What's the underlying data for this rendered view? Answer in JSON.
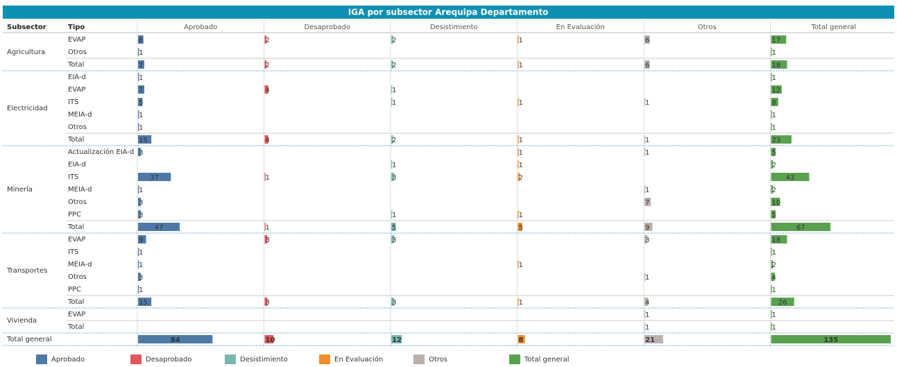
{
  "title": "IGA por subsector Arequipa Departamento",
  "header": {
    "subsector": "Subsector",
    "tipo": "Tipo"
  },
  "columns": [
    {
      "name": "Aprobado",
      "color": "#4e79a7"
    },
    {
      "name": "Desaprobado",
      "color": "#e15759"
    },
    {
      "name": "Desistimiento",
      "color": "#76b7b2"
    },
    {
      "name": "En Evaluación",
      "color": "#f28e2b"
    },
    {
      "name": "Otros",
      "color": "#bab0ac"
    },
    {
      "name": "Total general",
      "color": "#59a14f"
    }
  ],
  "groups": [
    {
      "subsector": "Agricultura",
      "rows": [
        {
          "tipo": "EVAP",
          "values": [
            6,
            2,
            2,
            1,
            6,
            17
          ]
        },
        {
          "tipo": "Otros",
          "values": [
            1,
            null,
            null,
            null,
            null,
            1
          ]
        },
        {
          "tipo": "Total",
          "values": [
            7,
            2,
            2,
            1,
            6,
            18
          ]
        }
      ]
    },
    {
      "subsector": "Electricidad",
      "rows": [
        {
          "tipo": "EIA-d",
          "values": [
            1,
            null,
            null,
            null,
            null,
            1
          ]
        },
        {
          "tipo": "EVAP",
          "values": [
            7,
            4,
            1,
            null,
            null,
            12
          ]
        },
        {
          "tipo": "ITS",
          "values": [
            5,
            null,
            1,
            1,
            1,
            8
          ]
        },
        {
          "tipo": "MEIA-d",
          "values": [
            1,
            null,
            null,
            null,
            null,
            1
          ]
        },
        {
          "tipo": "Otros",
          "values": [
            1,
            null,
            null,
            null,
            null,
            1
          ]
        },
        {
          "tipo": "Total",
          "values": [
            15,
            4,
            2,
            1,
            1,
            23
          ]
        }
      ]
    },
    {
      "subsector": "Minería",
      "rows": [
        {
          "tipo": "Actualización EIA-d",
          "values": [
            3,
            null,
            null,
            1,
            1,
            5
          ]
        },
        {
          "tipo": "EIA-d",
          "values": [
            null,
            null,
            1,
            1,
            null,
            2
          ]
        },
        {
          "tipo": "ITS",
          "values": [
            37,
            1,
            3,
            2,
            null,
            43
          ]
        },
        {
          "tipo": "MEIA-d",
          "values": [
            1,
            null,
            null,
            null,
            1,
            2
          ]
        },
        {
          "tipo": "Otros",
          "values": [
            3,
            null,
            null,
            null,
            7,
            10
          ]
        },
        {
          "tipo": "PPC",
          "values": [
            3,
            null,
            1,
            1,
            null,
            5
          ]
        },
        {
          "tipo": "Total",
          "values": [
            47,
            1,
            5,
            5,
            9,
            67
          ]
        }
      ]
    },
    {
      "subsector": "Transportes",
      "rows": [
        {
          "tipo": "EVAP",
          "values": [
            9,
            3,
            3,
            null,
            3,
            18
          ]
        },
        {
          "tipo": "ITS",
          "values": [
            1,
            null,
            null,
            null,
            null,
            1
          ]
        },
        {
          "tipo": "MEIA-d",
          "values": [
            1,
            null,
            null,
            1,
            null,
            2
          ]
        },
        {
          "tipo": "Otros",
          "values": [
            3,
            null,
            null,
            null,
            1,
            4
          ]
        },
        {
          "tipo": "PPC",
          "values": [
            1,
            null,
            null,
            null,
            null,
            1
          ]
        },
        {
          "tipo": "Total",
          "values": [
            15,
            3,
            3,
            1,
            4,
            26
          ]
        }
      ]
    },
    {
      "subsector": "Vivienda",
      "rows": [
        {
          "tipo": "EVAP",
          "values": [
            null,
            null,
            null,
            null,
            1,
            1
          ]
        },
        {
          "tipo": "Total",
          "values": [
            null,
            null,
            null,
            null,
            1,
            1
          ]
        }
      ]
    }
  ],
  "grand_total": {
    "label": "Total general",
    "values": [
      84,
      10,
      12,
      8,
      21,
      135
    ]
  }
}
